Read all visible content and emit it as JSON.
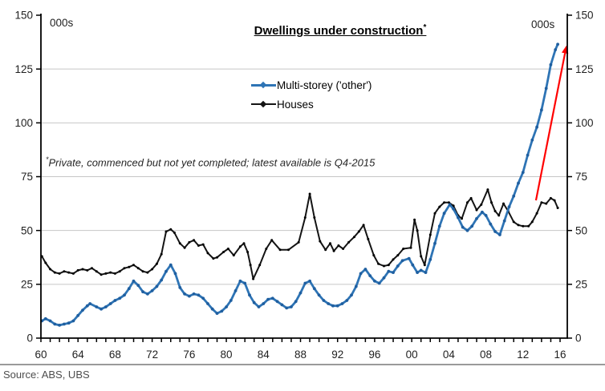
{
  "header": {
    "title": "Dwellings under construction",
    "title_marker": "*",
    "unit_left": "000s",
    "unit_right": "000s"
  },
  "legend": {
    "items": [
      {
        "label": "Multi-storey ('other')",
        "color": "#2E74B5"
      },
      {
        "label": "Houses",
        "color": "#141414"
      }
    ]
  },
  "footnote": {
    "marker": "*",
    "text": "Private, commenced but not yet completed; latest available is Q4-2015"
  },
  "source": {
    "text": "Source: ABS, UBS"
  },
  "colors": {
    "multistorey_line": "#2E74B5",
    "multistorey_marker": "#1F5FA0",
    "houses_line": "#141414",
    "arrow": "#FF0000",
    "gridline": "#c6c6c6",
    "axis": "#000000"
  },
  "chart_data": {
    "type": "line",
    "title": "Dwellings under construction*",
    "x_axis": {
      "range": [
        1960,
        2016.8
      ],
      "tick_years": [
        1960,
        1964,
        1968,
        1972,
        1976,
        1980,
        1984,
        1988,
        1992,
        1996,
        2000,
        2004,
        2008,
        2012,
        2016
      ],
      "tick_labels": [
        "60",
        "64",
        "68",
        "72",
        "76",
        "80",
        "84",
        "88",
        "92",
        "96",
        "00",
        "04",
        "08",
        "12",
        "16"
      ],
      "minor_tick_every_years": 1
    },
    "y_axis": {
      "unit": "000s",
      "range": [
        0,
        150
      ],
      "ticks": [
        0,
        25,
        50,
        75,
        100,
        125,
        150
      ],
      "grid_values": [
        25,
        50,
        75,
        100,
        125
      ],
      "mirrored_right": true,
      "grid": true
    },
    "legend_position": "top-center-inside",
    "series": [
      {
        "name": "Multi-storey ('other')",
        "color": "#2E74B5",
        "marker_color": "#1F5FA0",
        "points": [
          [
            1960.1,
            8
          ],
          [
            1960.5,
            9
          ],
          [
            1961,
            8
          ],
          [
            1961.5,
            6.5
          ],
          [
            1962,
            6
          ],
          [
            1962.5,
            6.5
          ],
          [
            1963,
            7
          ],
          [
            1963.5,
            8
          ],
          [
            1964,
            10.5
          ],
          [
            1964.5,
            13
          ],
          [
            1965,
            15
          ],
          [
            1965.3,
            16
          ],
          [
            1966,
            14.5
          ],
          [
            1966.5,
            13.5
          ],
          [
            1967,
            14.5
          ],
          [
            1967.5,
            16
          ],
          [
            1968,
            17.5
          ],
          [
            1968.5,
            18.5
          ],
          [
            1969,
            20
          ],
          [
            1969.5,
            23
          ],
          [
            1970,
            26.5
          ],
          [
            1970.5,
            24.5
          ],
          [
            1971,
            21.5
          ],
          [
            1971.5,
            20.5
          ],
          [
            1972,
            22
          ],
          [
            1972.5,
            24
          ],
          [
            1973,
            27
          ],
          [
            1973.5,
            31
          ],
          [
            1974,
            34
          ],
          [
            1974.5,
            30
          ],
          [
            1975,
            23.5
          ],
          [
            1975.5,
            20.5
          ],
          [
            1976,
            19.5
          ],
          [
            1976.5,
            20.5
          ],
          [
            1977,
            20
          ],
          [
            1977.5,
            18.5
          ],
          [
            1978,
            16
          ],
          [
            1978.5,
            13.5
          ],
          [
            1979,
            11.5
          ],
          [
            1979.5,
            12.5
          ],
          [
            1980,
            14.5
          ],
          [
            1980.5,
            17.5
          ],
          [
            1981,
            22
          ],
          [
            1981.5,
            26.5
          ],
          [
            1982,
            25.5
          ],
          [
            1982.5,
            20
          ],
          [
            1983,
            16.5
          ],
          [
            1983.5,
            14.5
          ],
          [
            1984,
            16
          ],
          [
            1984.5,
            18
          ],
          [
            1985,
            18.5
          ],
          [
            1985.5,
            17
          ],
          [
            1986,
            15.5
          ],
          [
            1986.5,
            14
          ],
          [
            1987,
            14.5
          ],
          [
            1987.5,
            17
          ],
          [
            1988,
            21
          ],
          [
            1988.5,
            25.5
          ],
          [
            1989,
            26.5
          ],
          [
            1989.5,
            23
          ],
          [
            1990,
            20
          ],
          [
            1990.5,
            17.5
          ],
          [
            1991,
            16
          ],
          [
            1991.5,
            15
          ],
          [
            1992,
            15
          ],
          [
            1992.5,
            16
          ],
          [
            1993,
            17.5
          ],
          [
            1993.5,
            20
          ],
          [
            1994,
            24
          ],
          [
            1994.5,
            30
          ],
          [
            1995,
            32
          ],
          [
            1995.5,
            29
          ],
          [
            1996,
            26.5
          ],
          [
            1996.5,
            25.5
          ],
          [
            1997,
            28
          ],
          [
            1997.5,
            31
          ],
          [
            1998,
            30.5
          ],
          [
            1998.5,
            33.5
          ],
          [
            1999,
            36
          ],
          [
            1999.7,
            37
          ],
          [
            2000.1,
            34
          ],
          [
            2000.6,
            30.5
          ],
          [
            2001,
            31.5
          ],
          [
            2001.5,
            30.5
          ],
          [
            2002,
            36.5
          ],
          [
            2002.5,
            44
          ],
          [
            2003,
            52
          ],
          [
            2003.5,
            58
          ],
          [
            2004.1,
            62
          ],
          [
            2004.5,
            60
          ],
          [
            2005,
            56
          ],
          [
            2005.5,
            51.5
          ],
          [
            2006,
            50
          ],
          [
            2006.5,
            52
          ],
          [
            2007,
            55.5
          ],
          [
            2007.6,
            58.5
          ],
          [
            2008,
            57
          ],
          [
            2008.5,
            53
          ],
          [
            2009,
            49.5
          ],
          [
            2009.5,
            48
          ],
          [
            2010,
            54.5
          ],
          [
            2010.5,
            61
          ],
          [
            2011,
            66
          ],
          [
            2011.5,
            72
          ],
          [
            2012,
            77
          ],
          [
            2012.5,
            85
          ],
          [
            2013,
            92
          ],
          [
            2013.5,
            98
          ],
          [
            2014,
            106
          ],
          [
            2014.5,
            116
          ],
          [
            2015,
            127
          ],
          [
            2015.5,
            134
          ],
          [
            2015.75,
            136.5
          ]
        ]
      },
      {
        "name": "Houses",
        "color": "#141414",
        "marker_color": "#000000",
        "points": [
          [
            1960.1,
            38
          ],
          [
            1960.5,
            35
          ],
          [
            1961,
            32
          ],
          [
            1961.5,
            30.5
          ],
          [
            1962,
            30
          ],
          [
            1962.5,
            31
          ],
          [
            1963,
            30.5
          ],
          [
            1963.5,
            30
          ],
          [
            1964,
            31.5
          ],
          [
            1964.5,
            32
          ],
          [
            1965,
            31.5
          ],
          [
            1965.5,
            32.5
          ],
          [
            1966,
            31
          ],
          [
            1966.5,
            29.5
          ],
          [
            1967,
            30
          ],
          [
            1967.5,
            30.5
          ],
          [
            1968,
            30
          ],
          [
            1968.5,
            31
          ],
          [
            1969,
            32.5
          ],
          [
            1969.5,
            33
          ],
          [
            1970,
            34
          ],
          [
            1970.5,
            32.5
          ],
          [
            1971,
            31
          ],
          [
            1971.5,
            30.5
          ],
          [
            1972,
            32
          ],
          [
            1972.5,
            34.5
          ],
          [
            1973,
            39
          ],
          [
            1973.5,
            49.5
          ],
          [
            1974,
            50.5
          ],
          [
            1974.4,
            49
          ],
          [
            1975,
            44
          ],
          [
            1975.5,
            42
          ],
          [
            1976,
            44.5
          ],
          [
            1976.5,
            45.5
          ],
          [
            1977,
            43
          ],
          [
            1977.5,
            43.5
          ],
          [
            1978,
            39.5
          ],
          [
            1978.6,
            37
          ],
          [
            1979,
            37.5
          ],
          [
            1979.7,
            40
          ],
          [
            1980.2,
            41.5
          ],
          [
            1980.8,
            38.5
          ],
          [
            1981.5,
            42.5
          ],
          [
            1981.9,
            44
          ],
          [
            1982.3,
            40
          ],
          [
            1982.6,
            34
          ],
          [
            1982.9,
            27.5
          ],
          [
            1983.6,
            34
          ],
          [
            1984.3,
            41.5
          ],
          [
            1984.9,
            45.5
          ],
          [
            1985.8,
            41
          ],
          [
            1986.7,
            41
          ],
          [
            1987.8,
            44.5
          ],
          [
            1988.5,
            56
          ],
          [
            1989,
            67
          ],
          [
            1989.5,
            56
          ],
          [
            1990.1,
            45
          ],
          [
            1990.7,
            41
          ],
          [
            1991.2,
            44
          ],
          [
            1991.6,
            40.5
          ],
          [
            1992.1,
            43
          ],
          [
            1992.6,
            41.5
          ],
          [
            1993.2,
            44.5
          ],
          [
            1993.8,
            47
          ],
          [
            1994.3,
            49.5
          ],
          [
            1994.8,
            52.5
          ],
          [
            1995.3,
            46
          ],
          [
            1995.9,
            38.5
          ],
          [
            1996.4,
            34.5
          ],
          [
            1997,
            33.5
          ],
          [
            1997.5,
            34
          ],
          [
            1998,
            36.5
          ],
          [
            1998.5,
            38.5
          ],
          [
            1999.1,
            41.5
          ],
          [
            1999.9,
            42
          ],
          [
            2000.3,
            55
          ],
          [
            2000.6,
            50
          ],
          [
            2001,
            38
          ],
          [
            2001.4,
            34
          ],
          [
            2002,
            48
          ],
          [
            2002.5,
            58
          ],
          [
            2003,
            61
          ],
          [
            2003.5,
            63
          ],
          [
            2004,
            63
          ],
          [
            2004.5,
            61.5
          ],
          [
            2005,
            57
          ],
          [
            2005.4,
            55.5
          ],
          [
            2006,
            63
          ],
          [
            2006.4,
            65
          ],
          [
            2007,
            59.5
          ],
          [
            2007.5,
            62
          ],
          [
            2008.2,
            69
          ],
          [
            2008.6,
            63
          ],
          [
            2009,
            59
          ],
          [
            2009.4,
            57
          ],
          [
            2009.9,
            62.5
          ],
          [
            2010.4,
            59
          ],
          [
            2011,
            54
          ],
          [
            2011.5,
            52.5
          ],
          [
            2012,
            52
          ],
          [
            2012.6,
            52
          ],
          [
            2013,
            54
          ],
          [
            2013.5,
            58
          ],
          [
            2014,
            63
          ],
          [
            2014.5,
            62.5
          ],
          [
            2015,
            65
          ],
          [
            2015.4,
            64
          ],
          [
            2015.75,
            60.5
          ]
        ]
      }
    ],
    "annotation_arrow": {
      "color": "#FF0000",
      "from": [
        2013.4,
        64
      ],
      "to": [
        2016.7,
        136
      ]
    }
  }
}
